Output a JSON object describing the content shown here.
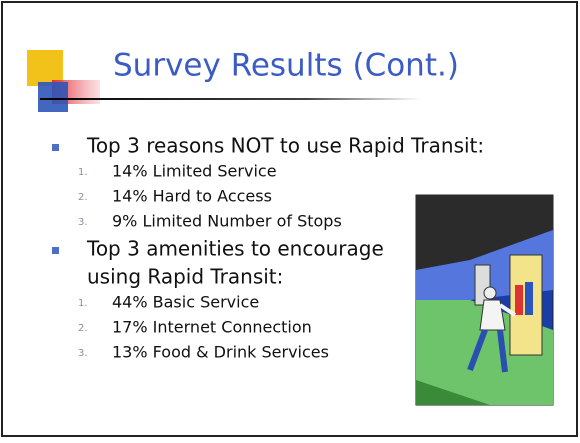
{
  "slide": {
    "title": "Survey Results (Cont.)",
    "sections": [
      {
        "heading_lines": [
          "Top 3 reasons NOT to use Rapid Transit:"
        ],
        "items": [
          {
            "marker": "1.",
            "text": "14% Limited Service"
          },
          {
            "marker": "2.",
            "text": "14% Hard to Access"
          },
          {
            "marker": "3.",
            "text": "9% Limited Number of Stops"
          }
        ]
      },
      {
        "heading_lines": [
          "Top 3 amenities to encourage",
          "using Rapid Transit:"
        ],
        "items": [
          {
            "marker": "1.",
            "text": "44% Basic Service"
          },
          {
            "marker": "2.",
            "text": "17% Internet Connection"
          },
          {
            "marker": "3.",
            "text": "13% Food & Drink Services"
          }
        ]
      }
    ]
  }
}
